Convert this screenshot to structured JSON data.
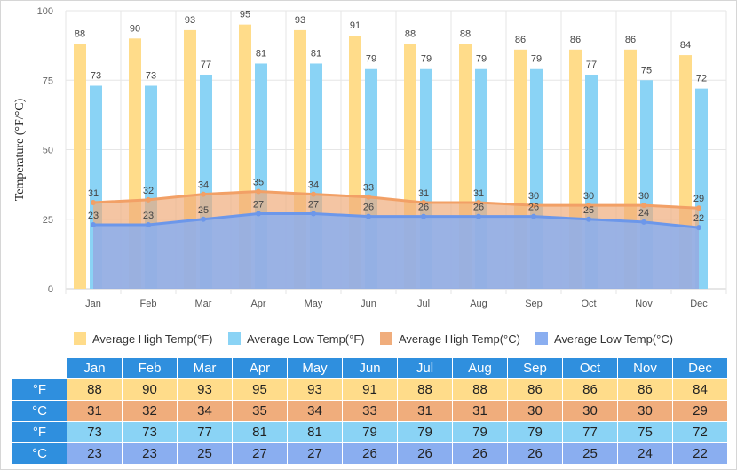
{
  "chart_data": {
    "type": "bar",
    "categories": [
      "Jan",
      "Feb",
      "Mar",
      "Apr",
      "May",
      "Jun",
      "Jul",
      "Aug",
      "Sep",
      "Oct",
      "Nov",
      "Dec"
    ],
    "ylabel": "Temperature (°F/°C)",
    "ylim": [
      0,
      100
    ],
    "yticks": [
      0,
      25,
      50,
      75,
      100
    ],
    "grid": true,
    "legend_position": "bottom",
    "series": [
      {
        "name": "Average High Temp(°F)",
        "kind": "bar",
        "color": "#ffdc8a",
        "values": [
          88,
          90,
          93,
          95,
          93,
          91,
          88,
          88,
          86,
          86,
          86,
          84
        ]
      },
      {
        "name": "Average Low Temp(°F)",
        "kind": "bar",
        "color": "#8ad3f5",
        "values": [
          73,
          73,
          77,
          81,
          81,
          79,
          79,
          79,
          79,
          77,
          75,
          72
        ]
      },
      {
        "name": "Average High Temp(°C)",
        "kind": "area",
        "color": "#f0ad7c",
        "values": [
          31,
          32,
          34,
          35,
          34,
          33,
          31,
          31,
          30,
          30,
          30,
          29
        ]
      },
      {
        "name": "Average Low Temp(°C)",
        "kind": "area",
        "color": "#8aaef0",
        "values": [
          23,
          23,
          25,
          27,
          27,
          26,
          26,
          26,
          26,
          25,
          24,
          22
        ]
      }
    ]
  },
  "table": {
    "months": [
      "Jan",
      "Feb",
      "Mar",
      "Apr",
      "May",
      "Jun",
      "Jul",
      "Aug",
      "Sep",
      "Oct",
      "Nov",
      "Dec"
    ],
    "rows": [
      {
        "unit": "°F",
        "color": "#ffdc8a",
        "values": [
          88,
          90,
          93,
          95,
          93,
          91,
          88,
          88,
          86,
          86,
          86,
          84
        ]
      },
      {
        "unit": "°C",
        "color": "#f0ad7c",
        "values": [
          31,
          32,
          34,
          35,
          34,
          33,
          31,
          31,
          30,
          30,
          30,
          29
        ]
      },
      {
        "unit": "°F",
        "color": "#8ad3f5",
        "values": [
          73,
          73,
          77,
          81,
          81,
          79,
          79,
          79,
          79,
          77,
          75,
          72
        ]
      },
      {
        "unit": "°C",
        "color": "#8aaef0",
        "values": [
          23,
          23,
          25,
          27,
          27,
          26,
          26,
          26,
          26,
          25,
          24,
          22
        ]
      }
    ]
  }
}
